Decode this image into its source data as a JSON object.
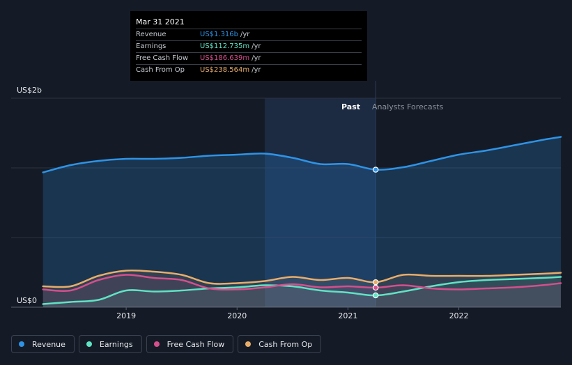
{
  "tooltip": {
    "date": "Mar 31 2021",
    "rows": [
      {
        "label": "Revenue",
        "value": "US$1.316b",
        "unit": "/yr",
        "color": "#2e93e6"
      },
      {
        "label": "Earnings",
        "value": "US$112.735m",
        "unit": "/yr",
        "color": "#5fe3c4"
      },
      {
        "label": "Free Cash Flow",
        "value": "US$186.639m",
        "unit": "/yr",
        "color": "#d54f8c"
      },
      {
        "label": "Cash From Op",
        "value": "US$238.564m",
        "unit": "/yr",
        "color": "#e8ad6a"
      }
    ]
  },
  "legend": [
    {
      "label": "Revenue",
      "color": "#2e93e6"
    },
    {
      "label": "Earnings",
      "color": "#5fe3c4"
    },
    {
      "label": "Free Cash Flow",
      "color": "#d54f8c"
    },
    {
      "label": "Cash From Op",
      "color": "#e8ad6a"
    }
  ],
  "chart_data": {
    "type": "area",
    "ylim": [
      0,
      2.0
    ],
    "y_unit": "US$ billions",
    "y_tick_labels": [
      {
        "value": 2.0,
        "label": "US$2b"
      },
      {
        "value": 0,
        "label": "US$0"
      }
    ],
    "xlim": [
      2018.17,
      2022.92
    ],
    "x_ticks": [
      2019,
      2020,
      2021,
      2022
    ],
    "past_label": "Past",
    "forecast_label": "Analysts Forecasts",
    "divider_x": 2021.25,
    "highlight_range": [
      2020.25,
      2021.25
    ],
    "grid": true,
    "series": [
      {
        "name": "Revenue",
        "color": "#2e93e6",
        "points": [
          [
            2018.25,
            1.29
          ],
          [
            2018.5,
            1.36
          ],
          [
            2018.75,
            1.4
          ],
          [
            2019.0,
            1.42
          ],
          [
            2019.25,
            1.42
          ],
          [
            2019.5,
            1.43
          ],
          [
            2019.75,
            1.45
          ],
          [
            2020.0,
            1.46
          ],
          [
            2020.25,
            1.47
          ],
          [
            2020.5,
            1.43
          ],
          [
            2020.75,
            1.37
          ],
          [
            2021.0,
            1.37
          ],
          [
            2021.25,
            1.316
          ],
          [
            2021.5,
            1.34
          ],
          [
            2021.75,
            1.4
          ],
          [
            2022.0,
            1.46
          ],
          [
            2022.25,
            1.5
          ],
          [
            2022.5,
            1.55
          ],
          [
            2022.75,
            1.6
          ],
          [
            2022.92,
            1.63
          ]
        ]
      },
      {
        "name": "Earnings",
        "color": "#5fe3c4",
        "points": [
          [
            2018.25,
            0.03
          ],
          [
            2018.5,
            0.05
          ],
          [
            2018.75,
            0.07
          ],
          [
            2019.0,
            0.16
          ],
          [
            2019.25,
            0.15
          ],
          [
            2019.5,
            0.16
          ],
          [
            2019.75,
            0.18
          ],
          [
            2020.0,
            0.19
          ],
          [
            2020.25,
            0.21
          ],
          [
            2020.5,
            0.2
          ],
          [
            2020.75,
            0.16
          ],
          [
            2021.0,
            0.14
          ],
          [
            2021.25,
            0.113
          ],
          [
            2021.5,
            0.15
          ],
          [
            2021.75,
            0.2
          ],
          [
            2022.0,
            0.24
          ],
          [
            2022.25,
            0.26
          ],
          [
            2022.5,
            0.27
          ],
          [
            2022.75,
            0.28
          ],
          [
            2022.92,
            0.29
          ]
        ]
      },
      {
        "name": "Free Cash Flow",
        "color": "#d54f8c",
        "points": [
          [
            2018.25,
            0.17
          ],
          [
            2018.5,
            0.16
          ],
          [
            2018.75,
            0.26
          ],
          [
            2019.0,
            0.31
          ],
          [
            2019.25,
            0.28
          ],
          [
            2019.5,
            0.26
          ],
          [
            2019.75,
            0.18
          ],
          [
            2020.0,
            0.17
          ],
          [
            2020.25,
            0.19
          ],
          [
            2020.5,
            0.22
          ],
          [
            2020.75,
            0.19
          ],
          [
            2021.0,
            0.2
          ],
          [
            2021.25,
            0.187
          ],
          [
            2021.5,
            0.21
          ],
          [
            2021.75,
            0.18
          ],
          [
            2022.0,
            0.17
          ],
          [
            2022.25,
            0.18
          ],
          [
            2022.5,
            0.19
          ],
          [
            2022.75,
            0.21
          ],
          [
            2022.92,
            0.23
          ]
        ]
      },
      {
        "name": "Cash From Op",
        "color": "#e8ad6a",
        "points": [
          [
            2018.25,
            0.2
          ],
          [
            2018.5,
            0.2
          ],
          [
            2018.75,
            0.3
          ],
          [
            2019.0,
            0.35
          ],
          [
            2019.25,
            0.34
          ],
          [
            2019.5,
            0.31
          ],
          [
            2019.75,
            0.23
          ],
          [
            2020.0,
            0.23
          ],
          [
            2020.25,
            0.25
          ],
          [
            2020.5,
            0.29
          ],
          [
            2020.75,
            0.26
          ],
          [
            2021.0,
            0.28
          ],
          [
            2021.25,
            0.239
          ],
          [
            2021.5,
            0.31
          ],
          [
            2021.75,
            0.3
          ],
          [
            2022.0,
            0.3
          ],
          [
            2022.25,
            0.3
          ],
          [
            2022.5,
            0.31
          ],
          [
            2022.75,
            0.32
          ],
          [
            2022.92,
            0.33
          ]
        ]
      }
    ]
  }
}
